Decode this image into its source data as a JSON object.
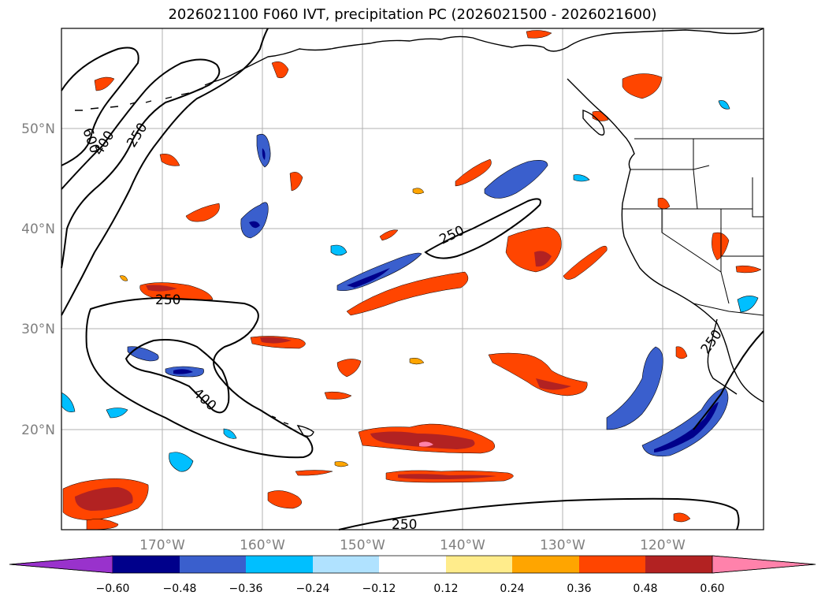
{
  "title": "2026021100 F060 IVT, precipitation PC (2026021500 - 2026021600)",
  "map": {
    "lat_labels": [
      "50°N",
      "40°N",
      "30°N",
      "20°N"
    ],
    "lon_labels": [
      "170°W",
      "160°W",
      "150°W",
      "140°W",
      "130°W",
      "120°W"
    ],
    "contour_levels": [
      "600",
      "400",
      "250",
      "250",
      "250",
      "400",
      "250",
      "250"
    ],
    "colors": {
      "ocean": "#ffffff",
      "coast": "#000000",
      "grid": "#b0b0b0",
      "neg_strong": "#00008b",
      "neg_mid": "#3a5fcd",
      "neg_light": "#00bfff",
      "neg_pale": "#b0e2ff",
      "pos_pale": "#ffec8b",
      "pos_light": "#ffa500",
      "pos_mid": "#ff4500",
      "pos_strong": "#b22222",
      "pos_top": "#ff82ab"
    }
  },
  "colorbar": {
    "ticks": [
      "−0.60",
      "−0.48",
      "−0.36",
      "−0.24",
      "−0.12",
      "0.12",
      "0.24",
      "0.36",
      "0.48",
      "0.60"
    ],
    "colors": [
      "#9932cc",
      "#00008b",
      "#3a5fcd",
      "#00bfff",
      "#b0e2ff",
      "#ffffff",
      "#ffec8b",
      "#ffa500",
      "#ff4500",
      "#b22222",
      "#ff82ab",
      "#ff82ab"
    ]
  }
}
